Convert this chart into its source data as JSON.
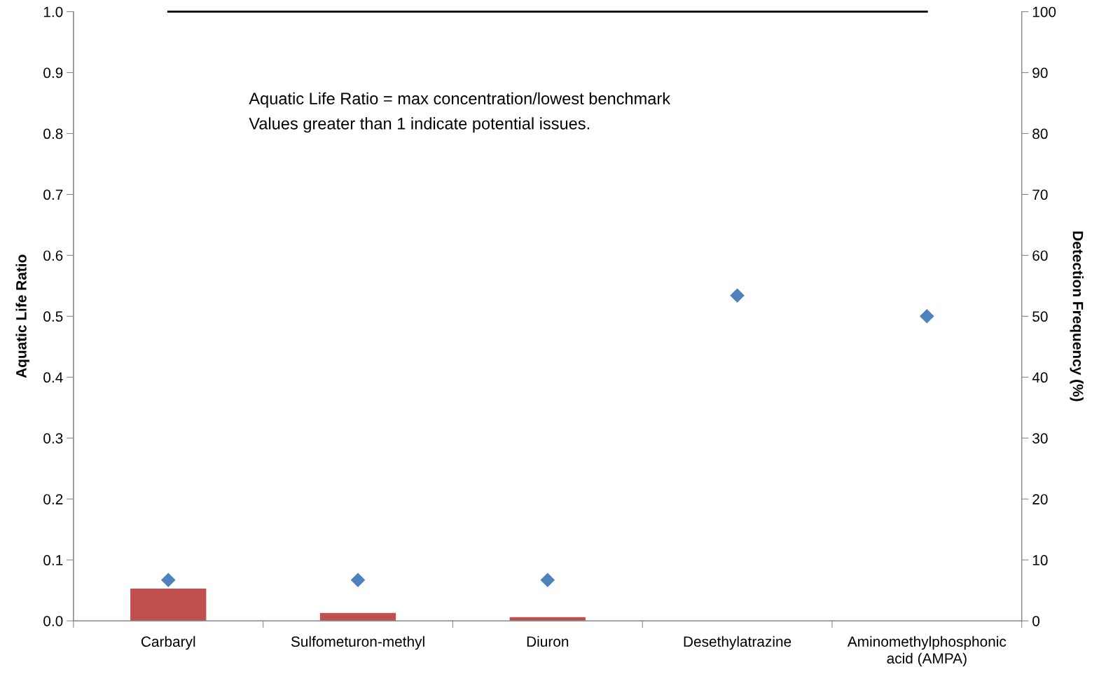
{
  "chart_data": {
    "type": "bar",
    "ylabel": "Aquatic Life Ratio",
    "y2label": "Detection Frequency (%)",
    "categories": [
      "Carbaryl",
      "Sulfometuron-methyl",
      "Diuron",
      "Desethylatrazine",
      "Aminomethylphosphonic\nacid (AMPA)"
    ],
    "series": [
      {
        "color": "#c0504d",
        "values": [
          0.053,
          0.013,
          0.006,
          null,
          null
        ]
      },
      {
        "type": "scatter",
        "color": "#4f81bd",
        "axis": "y2",
        "marker": "diamond",
        "values": [
          6.7,
          6.7,
          6.7,
          53.4,
          50
        ]
      },
      {
        "type": "line",
        "color": "#000000",
        "values": [
          1,
          1,
          1,
          1,
          1
        ]
      }
    ],
    "ylim": [
      0,
      1
    ],
    "yticks": [
      {
        "value": 0,
        "label": "0.0"
      },
      0.1,
      0.2,
      0.3,
      0.4,
      0.5,
      0.6,
      0.7,
      0.8,
      0.9,
      {
        "value": 1,
        "label": "1.0"
      }
    ],
    "y2lim": [
      0,
      100
    ],
    "y2ticks": [
      0,
      10,
      20,
      30,
      40,
      50,
      60,
      70,
      80,
      90,
      100
    ],
    "annotations": [
      "Aquatic Life Ratio = max concentration/lowest benchmark",
      "Values greater than 1 indicate potential issues."
    ],
    "grid": false,
    "legend": false
  }
}
